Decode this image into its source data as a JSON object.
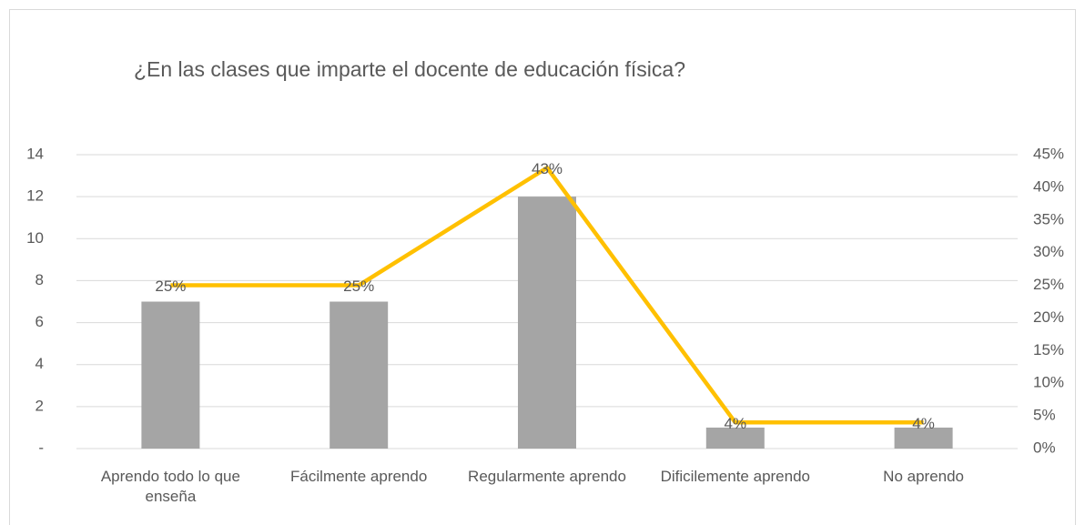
{
  "chart_data": {
    "type": "bar_line",
    "title": "¿En las clases que imparte el docente de educación física?",
    "categories": [
      "Aprendo todo lo que enseña",
      "Fácilmente aprendo",
      "Regularmente aprendo",
      "Dificilemente aprendo",
      "No aprendo"
    ],
    "series": [
      {
        "type": "bar",
        "color": "#a5a5a5",
        "values": [
          7,
          7,
          12,
          1,
          1
        ]
      },
      {
        "type": "line",
        "axis": "y2",
        "color": "#ffc000",
        "values": [
          25,
          25,
          43,
          4,
          4
        ],
        "value_labels": [
          "25%",
          "25%",
          "43%",
          "4%",
          "4%"
        ]
      }
    ],
    "ylim": [
      0,
      14
    ],
    "yticks": [
      {
        "value": 0,
        "label": "-"
      },
      2,
      4,
      6,
      8,
      10,
      12,
      14
    ],
    "y2lim": [
      0,
      45
    ],
    "y2ticks": [
      {
        "value": 0,
        "label": "0%"
      },
      {
        "value": 5,
        "label": "5%"
      },
      {
        "value": 10,
        "label": "10%"
      },
      {
        "value": 15,
        "label": "15%"
      },
      {
        "value": 20,
        "label": "20%"
      },
      {
        "value": 25,
        "label": "25%"
      },
      {
        "value": 30,
        "label": "30%"
      },
      {
        "value": 35,
        "label": "35%"
      },
      {
        "value": 40,
        "label": "40%"
      },
      {
        "value": 45,
        "label": "45%"
      }
    ],
    "grid": true
  }
}
